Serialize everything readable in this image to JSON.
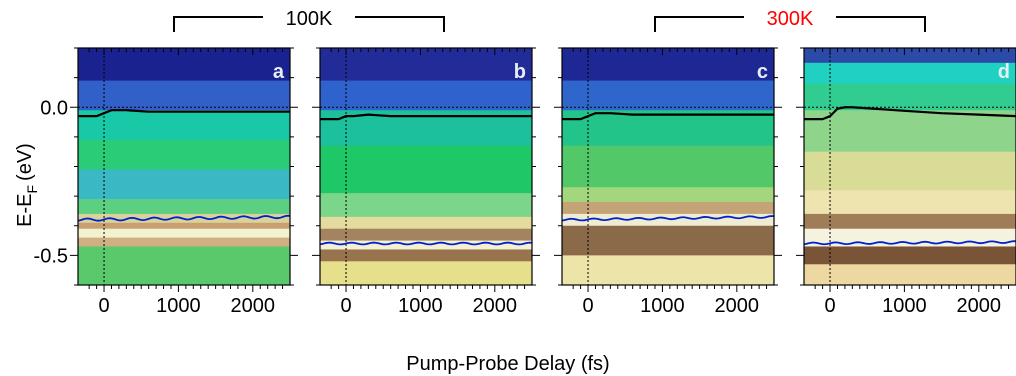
{
  "chart_data": {
    "type": "heatmap",
    "xlabel": "Pump-Probe Delay (fs)",
    "ylabel": "E-E",
    "ylabel_subscript": "F",
    "ylabel_unit": "(eV)",
    "xlim": [
      -350,
      2500
    ],
    "ylim": [
      -0.6,
      0.2
    ],
    "xticks": [
      0,
      1000,
      2000
    ],
    "xtick_labels": [
      "0",
      "1000",
      "2000"
    ],
    "yticks": [
      0.0,
      -0.5
    ],
    "ytick_labels": [
      "0.0",
      "-0.5"
    ],
    "reference_lines": {
      "x": 0,
      "y": 0.0,
      "style": "dotted"
    },
    "groups": [
      {
        "label": "100K",
        "color": "#000000",
        "panels": [
          "a",
          "b"
        ]
      },
      {
        "label": "300K",
        "color": "#ff0000",
        "panels": [
          "c",
          "d"
        ]
      }
    ],
    "panels": [
      {
        "letter": "a",
        "curves": [
          {
            "color": "#000000",
            "x": [
              -350,
              -100,
              0,
              100,
              300,
              600,
              1000,
              1500,
              2000,
              2500
            ],
            "y": [
              -0.03,
              -0.03,
              -0.02,
              -0.01,
              -0.01,
              -0.015,
              -0.015,
              -0.015,
              -0.015,
              -0.015
            ]
          },
          {
            "color": "#0022cc",
            "x": [
              -350,
              2500
            ],
            "y": [
              -0.38,
              -0.37
            ],
            "oscillation": 0.004
          }
        ],
        "bands": [
          {
            "y": 0.22,
            "h": 0.13,
            "color": "#1a2290"
          },
          {
            "y": 0.09,
            "h": 0.1,
            "color": "#3060c8"
          },
          {
            "y": -0.01,
            "h": 0.1,
            "color": "#18c8a6"
          },
          {
            "y": -0.11,
            "h": 0.1,
            "color": "#2bcc78"
          },
          {
            "y": -0.21,
            "h": 0.1,
            "color": "#3ab8c4"
          },
          {
            "y": -0.31,
            "h": 0.05,
            "color": "#5cd080"
          },
          {
            "y": -0.36,
            "h": 0.03,
            "color": "#d9d39a"
          },
          {
            "y": -0.39,
            "h": 0.02,
            "color": "#c8a070"
          },
          {
            "y": -0.41,
            "h": 0.03,
            "color": "#f2f2d0"
          },
          {
            "y": -0.44,
            "h": 0.03,
            "color": "#d0b080"
          },
          {
            "y": -0.47,
            "h": 0.13,
            "color": "#5ac96c"
          }
        ]
      },
      {
        "letter": "b",
        "curves": [
          {
            "color": "#000000",
            "x": [
              -350,
              -100,
              0,
              100,
              300,
              600,
              1000,
              1500,
              2000,
              2500
            ],
            "y": [
              -0.04,
              -0.04,
              -0.03,
              -0.03,
              -0.025,
              -0.03,
              -0.03,
              -0.03,
              -0.03,
              -0.03
            ]
          },
          {
            "color": "#0022cc",
            "x": [
              -350,
              2500
            ],
            "y": [
              -0.46,
              -0.46
            ],
            "oscillation": 0.003
          }
        ],
        "bands": [
          {
            "y": 0.22,
            "h": 0.13,
            "color": "#222c98"
          },
          {
            "y": 0.09,
            "h": 0.1,
            "color": "#2f62cc"
          },
          {
            "y": -0.01,
            "h": 0.12,
            "color": "#1cc09c"
          },
          {
            "y": -0.13,
            "h": 0.16,
            "color": "#1ec866"
          },
          {
            "y": -0.29,
            "h": 0.08,
            "color": "#7cd68a"
          },
          {
            "y": -0.37,
            "h": 0.04,
            "color": "#e4dc9e"
          },
          {
            "y": -0.41,
            "h": 0.04,
            "color": "#a48460"
          },
          {
            "y": -0.45,
            "h": 0.03,
            "color": "#f4f0d2"
          },
          {
            "y": -0.48,
            "h": 0.04,
            "color": "#98744e"
          },
          {
            "y": -0.52,
            "h": 0.08,
            "color": "#e6e08c"
          }
        ]
      },
      {
        "letter": "c",
        "curves": [
          {
            "color": "#000000",
            "x": [
              -350,
              -100,
              0,
              100,
              300,
              600,
              1000,
              1500,
              2000,
              2500
            ],
            "y": [
              -0.04,
              -0.04,
              -0.03,
              -0.02,
              -0.02,
              -0.025,
              -0.025,
              -0.025,
              -0.025,
              -0.025
            ]
          },
          {
            "color": "#0022cc",
            "x": [
              -350,
              2500
            ],
            "y": [
              -0.38,
              -0.37
            ],
            "oscillation": 0.003
          }
        ],
        "bands": [
          {
            "y": 0.22,
            "h": 0.13,
            "color": "#1e2894"
          },
          {
            "y": 0.09,
            "h": 0.1,
            "color": "#2f66cc"
          },
          {
            "y": -0.01,
            "h": 0.12,
            "color": "#22c48a"
          },
          {
            "y": -0.13,
            "h": 0.14,
            "color": "#52c868"
          },
          {
            "y": -0.27,
            "h": 0.05,
            "color": "#a4d67e"
          },
          {
            "y": -0.32,
            "h": 0.04,
            "color": "#c4a476"
          },
          {
            "y": -0.36,
            "h": 0.04,
            "color": "#f0ecd2"
          },
          {
            "y": -0.4,
            "h": 0.1,
            "color": "#8a6a48"
          },
          {
            "y": -0.5,
            "h": 0.1,
            "color": "#ece4a8"
          }
        ]
      },
      {
        "letter": "d",
        "curves": [
          {
            "color": "#000000",
            "x": [
              -350,
              -100,
              0,
              100,
              200,
              300,
              600,
              1000,
              1500,
              2000,
              2500
            ],
            "y": [
              -0.04,
              -0.04,
              -0.03,
              -0.005,
              0.0,
              0.0,
              -0.005,
              -0.012,
              -0.02,
              -0.025,
              -0.03
            ]
          },
          {
            "color": "#0022cc",
            "x": [
              -350,
              2500
            ],
            "y": [
              -0.46,
              -0.455
            ],
            "oscillation": 0.003
          }
        ],
        "bands": [
          {
            "y": 0.22,
            "h": 0.07,
            "color": "#2c4aa8"
          },
          {
            "y": 0.15,
            "h": 0.07,
            "color": "#20d0c0"
          },
          {
            "y": 0.08,
            "h": 0.09,
            "color": "#30cc90"
          },
          {
            "y": -0.01,
            "h": 0.14,
            "color": "#8ed48a"
          },
          {
            "y": -0.15,
            "h": 0.13,
            "color": "#d8dc96"
          },
          {
            "y": -0.28,
            "h": 0.08,
            "color": "#eee4b0"
          },
          {
            "y": -0.36,
            "h": 0.05,
            "color": "#a07c58"
          },
          {
            "y": -0.41,
            "h": 0.06,
            "color": "#f6f2e0"
          },
          {
            "y": -0.47,
            "h": 0.06,
            "color": "#7a5436"
          },
          {
            "y": -0.53,
            "h": 0.07,
            "color": "#ecd8a0"
          }
        ]
      }
    ]
  }
}
